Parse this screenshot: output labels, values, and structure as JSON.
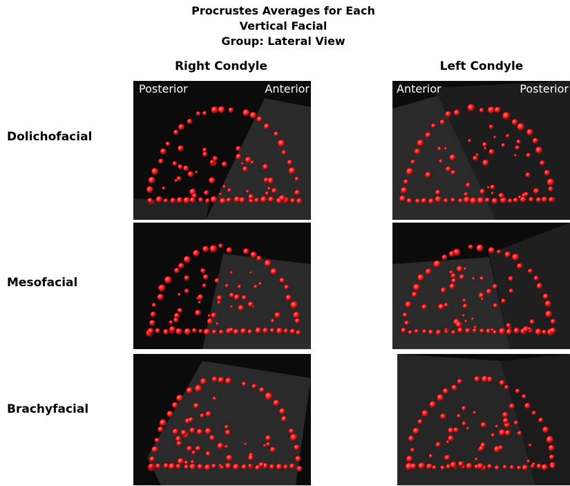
{
  "title_line1": "Procrustes Averages for Each Vertical Facial",
  "title_line2": "Group: Lateral View",
  "columns": {
    "right": "Right Condyle",
    "left": "Left Condyle"
  },
  "rows": [
    "Dolichofacial",
    "Mesofacial",
    "Brachyfacial"
  ],
  "orientation": {
    "right_posterior": "Posterior",
    "right_anterior": "Anterior",
    "left_anterior": "Anterior",
    "left_posterior": "Posterior"
  },
  "colors": {
    "landmark": "#ff2020",
    "panel_bg": "#0b0b0b",
    "plane": "#2a2a2a"
  }
}
